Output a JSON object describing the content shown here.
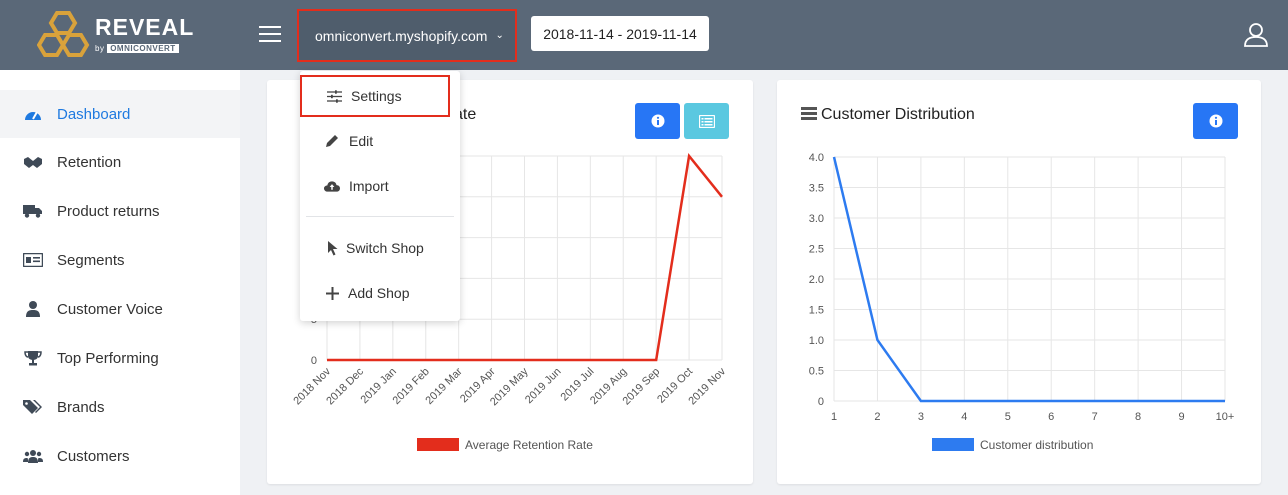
{
  "app": {
    "logo_text": "REVEAL",
    "logo_by": "by",
    "logo_brand": "OMNICONVERT"
  },
  "header": {
    "shop_name": "omniconvert.myshopify.com",
    "date_range": "2018-11-14 - 2019-11-14"
  },
  "sidebar": {
    "items": [
      {
        "label": "Dashboard",
        "icon": "dashboard-icon",
        "active": true
      },
      {
        "label": "Retention",
        "icon": "handshake-icon"
      },
      {
        "label": "Product returns",
        "icon": "truck-icon"
      },
      {
        "label": "Segments",
        "icon": "id-card-icon"
      },
      {
        "label": "Customer Voice",
        "icon": "user-icon"
      },
      {
        "label": "Top Performing",
        "icon": "trophy-icon"
      },
      {
        "label": "Brands",
        "icon": "tags-icon"
      },
      {
        "label": "Customers",
        "icon": "users-icon"
      }
    ]
  },
  "dropdown": {
    "items": [
      {
        "label": "Settings",
        "icon": "sliders-icon"
      },
      {
        "label": "Edit",
        "icon": "pencil-icon"
      },
      {
        "label": "Import",
        "icon": "cloud-upload-icon"
      },
      {
        "label": "Switch Shop",
        "icon": "cursor-icon"
      },
      {
        "label": "Add Shop",
        "icon": "plus-icon"
      }
    ]
  },
  "card1": {
    "title_visible": "ate"
  },
  "card2": {
    "title": "Customer Distribution"
  },
  "colors": {
    "accent_blue": "#2776f5",
    "red": "#e32d1c",
    "header": "#5a6878"
  },
  "chart_data": [
    {
      "type": "line",
      "categories": [
        "2018 Nov",
        "2018 Dec",
        "2019 Jan",
        "2019 Feb",
        "2019 Mar",
        "2019 Apr",
        "2019 May",
        "2019 Jun",
        "2019 Jul",
        "2019 Aug",
        "2019 Sep",
        "2019 Oct",
        "2019 Nov"
      ],
      "series": [
        {
          "name": "Average Retention Rate",
          "values": [
            0,
            0,
            0,
            0,
            0,
            0,
            0,
            0,
            0,
            0,
            0,
            25,
            20
          ],
          "color": "#e32d1c"
        }
      ],
      "y_visible_ticks": [
        "5",
        "0"
      ],
      "legend": "bottom",
      "grid": true
    },
    {
      "type": "line",
      "categories": [
        "1",
        "2",
        "3",
        "4",
        "5",
        "6",
        "7",
        "8",
        "9",
        "10+"
      ],
      "series": [
        {
          "name": "Customer distribution",
          "values": [
            4.0,
            1.0,
            0,
            0,
            0,
            0,
            0,
            0,
            0,
            0
          ],
          "color": "#2d7bf0"
        }
      ],
      "y_ticks": [
        "4.0",
        "3.5",
        "3.0",
        "2.5",
        "2.0",
        "1.5",
        "1.0",
        "0.5",
        "0"
      ],
      "ylim": [
        0,
        4
      ],
      "legend": "bottom",
      "grid": true
    }
  ]
}
